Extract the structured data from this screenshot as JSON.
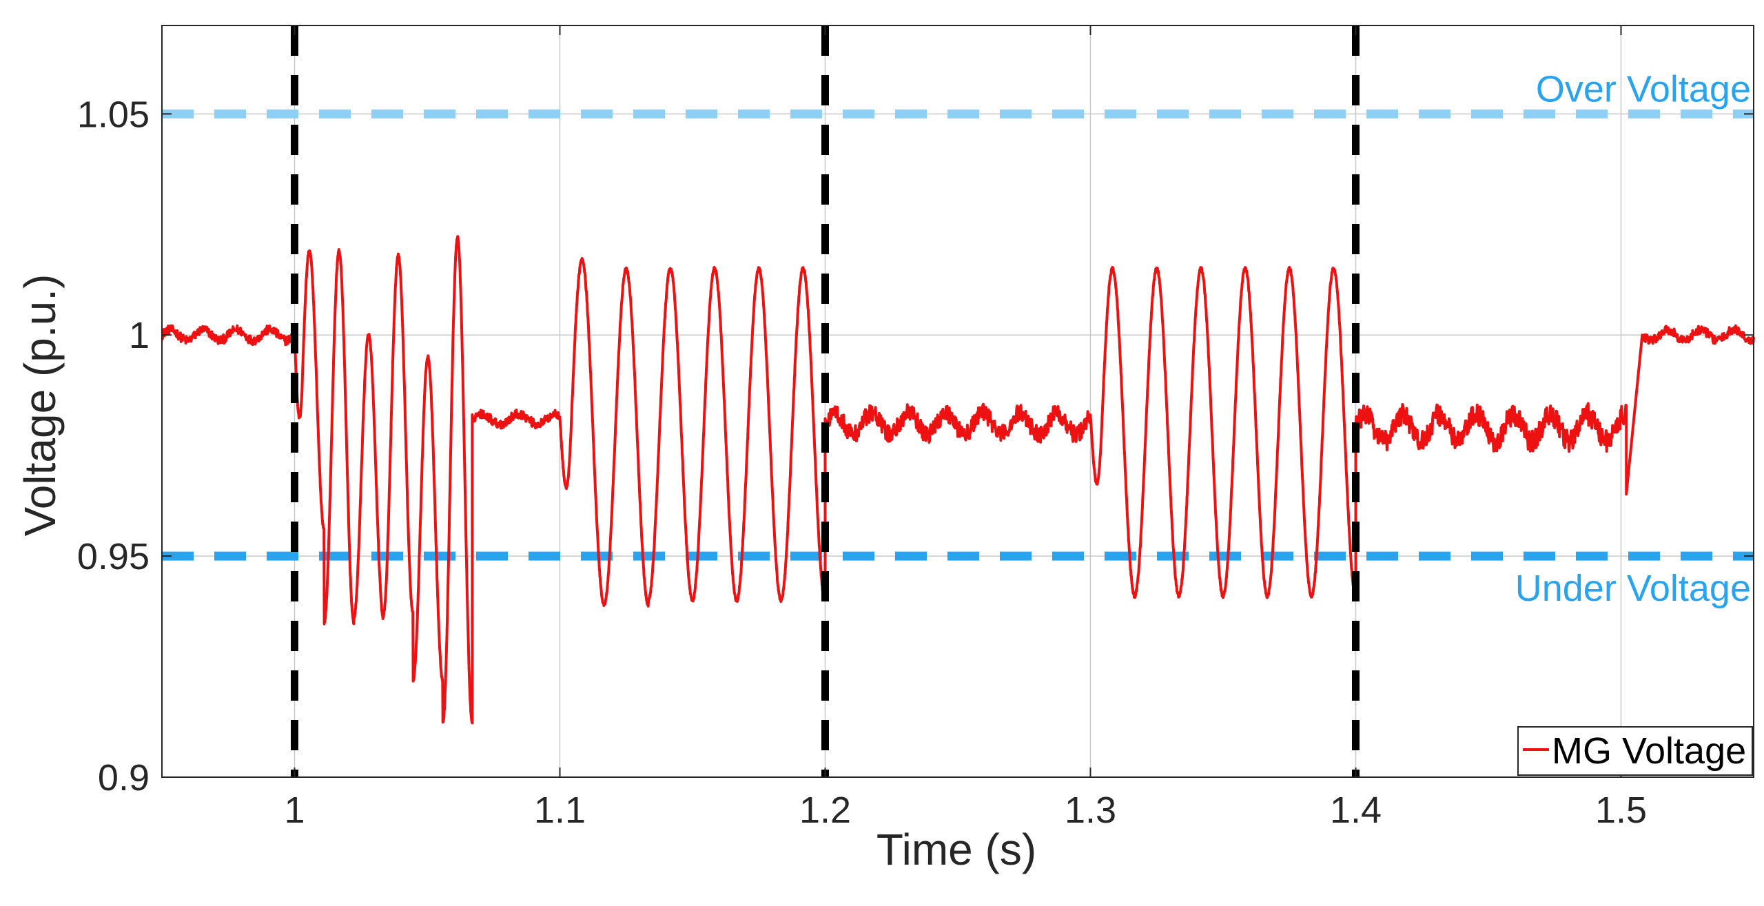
{
  "chart_data": {
    "type": "line",
    "xlabel": "Time (s)",
    "ylabel": "Voltage (p.u.)",
    "xlim": [
      0.95,
      1.55
    ],
    "ylim": [
      0.9,
      1.07
    ],
    "x_ticks": [
      1,
      1.1,
      1.2,
      1.3,
      1.4,
      1.5
    ],
    "x_tick_labels": [
      "1",
      "1.1",
      "1.2",
      "1.3",
      "1.4",
      "1.5"
    ],
    "y_ticks": [
      0.9,
      0.95,
      1,
      1.05
    ],
    "y_tick_labels": [
      "0.9",
      "0.95",
      "1",
      "1.05"
    ],
    "grid": true,
    "legend_position": "bottom-right",
    "colors": {
      "series": "#ee1111",
      "over_voltage": "#8ecff5",
      "under_voltage": "#2aa3ee",
      "event_lines": "#000000",
      "grid": "#c8c8c8"
    },
    "series": [
      {
        "name": "MG Voltage",
        "segments": [
          {
            "x_start": 0.95,
            "x_end": 1.0,
            "kind": "steady",
            "mean": 1.0,
            "ripple": 0.002
          },
          {
            "x_start": 1.0,
            "x_end": 1.067,
            "kind": "oscillation",
            "peaks_max": [
              1.019,
              1.019,
              1.0,
              1.018,
              0.995,
              1.022
            ],
            "peaks_min": [
              0.956,
              0.935,
              0.936,
              0.937,
              0.922,
              0.912
            ]
          },
          {
            "x_start": 1.067,
            "x_end": 1.1,
            "kind": "steady",
            "mean": 0.981,
            "ripple": 0.002
          },
          {
            "x_start": 1.1,
            "x_end": 1.2,
            "kind": "oscillation",
            "peaks_max": [
              1.017,
              1.015,
              1.015,
              1.015,
              1.015,
              1.015
            ],
            "peaks_min": [
              0.939,
              0.939,
              0.94,
              0.94,
              0.94,
              0.94
            ]
          },
          {
            "x_start": 1.2,
            "x_end": 1.3,
            "kind": "steady",
            "mean": 0.98,
            "ripple": 0.004
          },
          {
            "x_start": 1.3,
            "x_end": 1.4,
            "kind": "oscillation",
            "peaks_max": [
              1.015,
              1.015,
              1.015,
              1.015,
              1.015,
              1.015
            ],
            "peaks_min": [
              0.941,
              0.941,
              0.941,
              0.941,
              0.941,
              0.941
            ]
          },
          {
            "x_start": 1.4,
            "x_end": 1.502,
            "kind": "steady",
            "mean": 0.979,
            "ripple": 0.005
          },
          {
            "x_start": 1.502,
            "x_end": 1.55,
            "kind": "steady",
            "mean": 1.0,
            "ripple": 0.002,
            "min_at_start": 0.964
          }
        ]
      }
    ],
    "reference_lines": [
      {
        "label": "Over Voltage",
        "y": 1.05,
        "style": "dashed"
      },
      {
        "label": "Under Voltage",
        "y": 0.95,
        "style": "dashed"
      }
    ],
    "event_lines": [
      1.0,
      1.2,
      1.4
    ]
  }
}
